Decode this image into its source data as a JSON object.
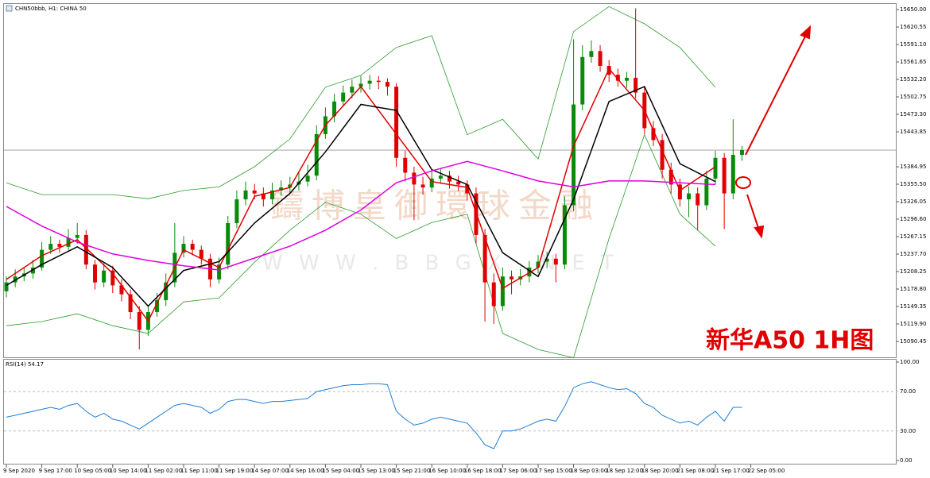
{
  "chart_data": {
    "type": "candlestick",
    "title": "CHN50bbb, H1:  CHINA 50",
    "watermark": "鑄博皇御環球金融",
    "watermark_url": "W W W . B B G X . N E T",
    "annotation": "新华A50 1H图",
    "up_color": "#0a8a0a",
    "down_color": "#e00000",
    "ylim": [
      15063.7,
      15659.4
    ],
    "yticks": [
      {
        "value": 15650,
        "label": "15650.00"
      },
      {
        "value": 15620.55,
        "label": "15620.55"
      },
      {
        "value": 15591.1,
        "label": "15591.10"
      },
      {
        "value": 15561.65,
        "label": "15561.65"
      },
      {
        "value": 15532.2,
        "label": "15532.20"
      },
      {
        "value": 15502.75,
        "label": "15502.75"
      },
      {
        "value": 15473.3,
        "label": "15473.30"
      },
      {
        "value": 15443.85,
        "label": "15443.85"
      },
      {
        "value": 15384.95,
        "label": "15384.95"
      },
      {
        "value": 15355.5,
        "label": "15355.50"
      },
      {
        "value": 15326.05,
        "label": "15326.05"
      },
      {
        "value": 15296.6,
        "label": "15296.60"
      },
      {
        "value": 15267.15,
        "label": "15267.15"
      },
      {
        "value": 15237.7,
        "label": "15237.70"
      },
      {
        "value": 15208.25,
        "label": "15208.25"
      },
      {
        "value": 15178.8,
        "label": "15178.80"
      },
      {
        "value": 15149.35,
        "label": "15149.35"
      },
      {
        "value": 15119.9,
        "label": "15119.90"
      },
      {
        "value": 15090.45,
        "label": "15090.45"
      }
    ],
    "last_price": 15413,
    "x_labels": [
      "9 Sep 2020",
      "9 Sep 17:00",
      "10 Sep 05:00",
      "10 Sep 14:00",
      "11 Sep 02:00",
      "11 Sep 11:00",
      "11 Sep 19:00",
      "14 Sep 07:00",
      "14 Sep 16:00",
      "15 Sep 04:00",
      "15 Sep 13:00",
      "15 Sep 21:00",
      "16 Sep 10:00",
      "16 Sep 18:00",
      "17 Sep 06:00",
      "17 Sep 15:00",
      "18 Sep 03:00",
      "18 Sep 12:00",
      "18 Sep 20:00",
      "21 Sep 08:00",
      "21 Sep 17:00",
      "22 Sep 05:00"
    ],
    "candles": [
      [
        15175,
        15200,
        15165,
        15190
      ],
      [
        15190,
        15212,
        15182,
        15200
      ],
      [
        15200,
        15215,
        15192,
        15205
      ],
      [
        15205,
        15228,
        15196,
        15215
      ],
      [
        15215,
        15258,
        15210,
        15245
      ],
      [
        15245,
        15268,
        15238,
        15255
      ],
      [
        15255,
        15262,
        15240,
        15250
      ],
      [
        15250,
        15280,
        15244,
        15265
      ],
      [
        15265,
        15290,
        15255,
        15270
      ],
      [
        15270,
        15278,
        15212,
        15220
      ],
      [
        15220,
        15228,
        15178,
        15190
      ],
      [
        15190,
        15222,
        15182,
        15210
      ],
      [
        15210,
        15218,
        15172,
        15185
      ],
      [
        15185,
        15195,
        15158,
        15170
      ],
      [
        15170,
        15178,
        15128,
        15140
      ],
      [
        15140,
        15150,
        15077,
        15110
      ],
      [
        15110,
        15152,
        15100,
        15140
      ],
      [
        15140,
        15172,
        15132,
        15160
      ],
      [
        15160,
        15205,
        15150,
        15190
      ],
      [
        15190,
        15290,
        15182,
        15240
      ],
      [
        15240,
        15268,
        15232,
        15255
      ],
      [
        15255,
        15262,
        15236,
        15245
      ],
      [
        15245,
        15252,
        15220,
        15230
      ],
      [
        15230,
        15238,
        15182,
        15195
      ],
      [
        15195,
        15232,
        15188,
        15220
      ],
      [
        15220,
        15302,
        15212,
        15290
      ],
      [
        15290,
        15345,
        15282,
        15330
      ],
      [
        15330,
        15360,
        15320,
        15345
      ],
      [
        15345,
        15356,
        15330,
        15340
      ],
      [
        15340,
        15350,
        15318,
        15330
      ],
      [
        15330,
        15358,
        15322,
        15345
      ],
      [
        15345,
        15362,
        15336,
        15350
      ],
      [
        15350,
        15368,
        15340,
        15355
      ],
      [
        15355,
        15375,
        15345,
        15360
      ],
      [
        15360,
        15388,
        15352,
        15370
      ],
      [
        15370,
        15455,
        15362,
        15440
      ],
      [
        15440,
        15485,
        15432,
        15470
      ],
      [
        15470,
        15508,
        15460,
        15495
      ],
      [
        15495,
        15522,
        15486,
        15510
      ],
      [
        15510,
        15532,
        15500,
        15520
      ],
      [
        15520,
        15538,
        15510,
        15525
      ],
      [
        15525,
        15540,
        15515,
        15530
      ],
      [
        15530,
        15538,
        15516,
        15528
      ],
      [
        15528,
        15534,
        15505,
        15520
      ],
      [
        15520,
        15526,
        15385,
        15400
      ],
      [
        15400,
        15412,
        15360,
        15375
      ],
      [
        15375,
        15385,
        15295,
        15355
      ],
      [
        15355,
        15368,
        15338,
        15350
      ],
      [
        15350,
        15378,
        15342,
        15365
      ],
      [
        15365,
        15382,
        15356,
        15370
      ],
      [
        15370,
        15378,
        15348,
        15360
      ],
      [
        15360,
        15370,
        15344,
        15355
      ],
      [
        15355,
        15362,
        15328,
        15340
      ],
      [
        15340,
        15350,
        15255,
        15270
      ],
      [
        15270,
        15280,
        15124,
        15190
      ],
      [
        15190,
        15205,
        15120,
        15150
      ],
      [
        15150,
        15215,
        15142,
        15200
      ],
      [
        15200,
        15210,
        15170,
        15195
      ],
      [
        15195,
        15212,
        15185,
        15200
      ],
      [
        15200,
        15226,
        15190,
        15215
      ],
      [
        15215,
        15236,
        15205,
        15225
      ],
      [
        15225,
        15242,
        15214,
        15230
      ],
      [
        15230,
        15238,
        15190,
        15220
      ],
      [
        15220,
        15335,
        15212,
        15320
      ],
      [
        15320,
        15600,
        15310,
        15490
      ],
      [
        15490,
        15590,
        15480,
        15570
      ],
      [
        15570,
        15598,
        15560,
        15580
      ],
      [
        15580,
        15590,
        15545,
        15555
      ],
      [
        15555,
        15565,
        15528,
        15540
      ],
      [
        15540,
        15550,
        15520,
        15530
      ],
      [
        15530,
        15545,
        15518,
        15535
      ],
      [
        15535,
        15652,
        15500,
        15510
      ],
      [
        15510,
        15520,
        15440,
        15450
      ],
      [
        15450,
        15462,
        15420,
        15430
      ],
      [
        15430,
        15440,
        15365,
        15380
      ],
      [
        15380,
        15392,
        15340,
        15355
      ],
      [
        15355,
        15365,
        15318,
        15330
      ],
      [
        15330,
        15352,
        15300,
        15340
      ],
      [
        15340,
        15350,
        15278,
        15320
      ],
      [
        15320,
        15378,
        15312,
        15365
      ],
      [
        15365,
        15412,
        15355,
        15400
      ],
      [
        15400,
        15408,
        15280,
        15340
      ],
      [
        15340,
        15465,
        15330,
        15405
      ],
      [
        15405,
        15420,
        15395,
        15413
      ]
    ],
    "overlays": [
      {
        "color": "#e00000",
        "values": [
          15195,
          15235,
          15262,
          15205,
          15125,
          15245,
          15215,
          15335,
          15350,
          15455,
          15520,
          15440,
          15360,
          15350,
          15180,
          15215,
          15420,
          15550,
          15480,
          15345,
          15385,
          null
        ]
      },
      {
        "color": "#000000",
        "values": [
          15185,
          15220,
          15250,
          15215,
          15150,
          15210,
          15225,
          15290,
          15340,
          15410,
          15490,
          15480,
          15380,
          15355,
          15240,
          15200,
          15330,
          15495,
          15520,
          15390,
          15360,
          null
        ]
      },
      {
        "color": "#e000e0",
        "values": [
          15318,
          15285,
          15258,
          15238,
          15227,
          15218,
          15211,
          15231,
          15251,
          15278,
          15312,
          15358,
          15378,
          15394,
          15378,
          15361,
          15351,
          15361,
          15361,
          15358,
          15355,
          null
        ]
      },
      {
        "color": "#2a9a2a",
        "values": [
          15358,
          15338,
          15338,
          15338,
          15331,
          15345,
          15351,
          15385,
          15432,
          15519,
          15539,
          15586,
          15606,
          15439,
          15465,
          15398,
          15613,
          15655,
          15626,
          15586,
          15519,
          null
        ]
      },
      {
        "color": "#2a9a2a",
        "values": [
          15117,
          15124,
          15137,
          15117,
          15104,
          15157,
          15164,
          15224,
          15278,
          15325,
          15305,
          15264,
          15291,
          15305,
          15104,
          15077,
          15063,
          15264,
          15439,
          15305,
          15251,
          null
        ]
      }
    ],
    "rsi_title": "RSI(14) 54.17",
    "rsi_color": "#1e7fd6",
    "rsi_ylim": [
      0,
      100
    ],
    "rsi_ticks": [
      {
        "value": 100,
        "label": "100.00"
      },
      {
        "value": 70,
        "label": "70.00"
      },
      {
        "value": 30,
        "label": "30.00"
      },
      {
        "value": 0,
        "label": "0.00"
      }
    ],
    "rsi_values": [
      44,
      46,
      48,
      50,
      52,
      54,
      52,
      56,
      58,
      50,
      44,
      48,
      42,
      40,
      36,
      32,
      38,
      44,
      50,
      56,
      58,
      56,
      54,
      48,
      52,
      60,
      62,
      62,
      60,
      58,
      60,
      60,
      61,
      62,
      63,
      70,
      72,
      74,
      76,
      77,
      77,
      78,
      78,
      77,
      50,
      42,
      36,
      38,
      42,
      44,
      42,
      40,
      38,
      28,
      16,
      12,
      30,
      30,
      32,
      36,
      40,
      42,
      40,
      55,
      74,
      78,
      80,
      77,
      74,
      72,
      73,
      68,
      58,
      54,
      46,
      42,
      38,
      40,
      36,
      44,
      50,
      40,
      54,
      54
    ]
  }
}
